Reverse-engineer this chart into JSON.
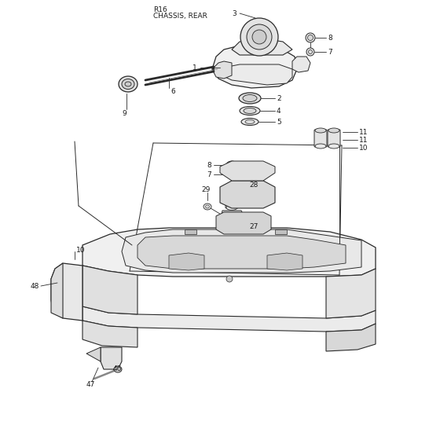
{
  "title_line1": "R16",
  "title_line2": "CHASSIS, REAR",
  "bg_color": "#ffffff",
  "line_color": "#2a2a2a",
  "fill_light": "#f0f0f0",
  "fill_mid": "#e0e0e0",
  "fill_dark": "#cccccc"
}
